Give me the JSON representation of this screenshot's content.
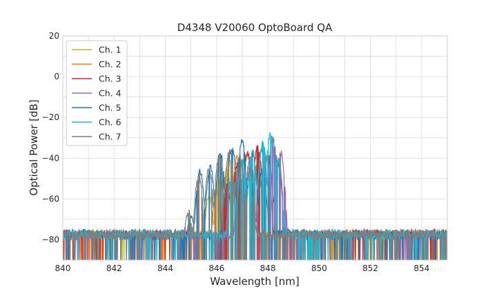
{
  "chart_data": {
    "type": "line",
    "title": "D4348 V20060 OptoBoard QA",
    "xlabel": "Wavelength [nm]",
    "ylabel": "Optical Power [dB]",
    "xlim": [
      840,
      855
    ],
    "ylim": [
      -90,
      20
    ],
    "xticks": [
      840,
      842,
      844,
      846,
      848,
      850,
      852,
      854
    ],
    "yticks": [
      -80,
      -60,
      -40,
      -20,
      0,
      20
    ],
    "ytick_labels": [
      "−80",
      "−60",
      "−40",
      "−20",
      "0",
      "20"
    ],
    "grid": true,
    "legend_position": "top-left",
    "noise_floor_db": -76,
    "series": [
      {
        "name": "Ch. 1",
        "color": "#bcbd22",
        "peaks": [
          {
            "x": 845.7,
            "y": -57
          },
          {
            "x": 846.1,
            "y": -46
          },
          {
            "x": 846.5,
            "y": -40
          },
          {
            "x": 846.9,
            "y": -38
          },
          {
            "x": 847.3,
            "y": -42
          },
          {
            "x": 847.7,
            "y": -50
          }
        ]
      },
      {
        "name": "Ch. 2",
        "color": "#ff7f0e",
        "peaks": [
          {
            "x": 846.0,
            "y": -55
          },
          {
            "x": 846.4,
            "y": -44
          },
          {
            "x": 846.8,
            "y": -38
          },
          {
            "x": 847.2,
            "y": -37
          },
          {
            "x": 847.6,
            "y": -41
          },
          {
            "x": 848.0,
            "y": -49
          }
        ]
      },
      {
        "name": "Ch. 3",
        "color": "#d62728",
        "peaks": [
          {
            "x": 846.4,
            "y": -51
          },
          {
            "x": 846.8,
            "y": -42
          },
          {
            "x": 847.2,
            "y": -36
          },
          {
            "x": 847.6,
            "y": -33
          },
          {
            "x": 848.0,
            "y": -36
          },
          {
            "x": 848.4,
            "y": -41
          }
        ]
      },
      {
        "name": "Ch. 4",
        "color": "#9467bd",
        "peaks": [
          {
            "x": 846.9,
            "y": -47
          },
          {
            "x": 847.3,
            "y": -39
          },
          {
            "x": 847.8,
            "y": -33
          },
          {
            "x": 848.2,
            "y": -29
          },
          {
            "x": 848.5,
            "y": -36
          }
        ]
      },
      {
        "name": "Ch. 5",
        "color": "#1f77b4",
        "peaks": [
          {
            "x": 845.0,
            "y": -67
          },
          {
            "x": 845.35,
            "y": -45
          },
          {
            "x": 845.75,
            "y": -43
          },
          {
            "x": 846.15,
            "y": -37
          },
          {
            "x": 846.6,
            "y": -33
          },
          {
            "x": 847.0,
            "y": -30
          },
          {
            "x": 847.4,
            "y": -36
          },
          {
            "x": 847.8,
            "y": -44
          }
        ]
      },
      {
        "name": "Ch. 6",
        "color": "#17becf",
        "peaks": [
          {
            "x": 846.6,
            "y": -47
          },
          {
            "x": 847.0,
            "y": -40
          },
          {
            "x": 847.4,
            "y": -35
          },
          {
            "x": 847.8,
            "y": -31
          },
          {
            "x": 848.1,
            "y": -27
          },
          {
            "x": 848.4,
            "y": -38
          }
        ]
      },
      {
        "name": "Ch. 7",
        "color": "#7f7f7f",
        "peaks": [
          {
            "x": 844.9,
            "y": -65
          },
          {
            "x": 845.3,
            "y": -47
          },
          {
            "x": 845.7,
            "y": -44
          },
          {
            "x": 846.1,
            "y": -38
          },
          {
            "x": 846.5,
            "y": -35
          },
          {
            "x": 846.9,
            "y": -37
          },
          {
            "x": 847.3,
            "y": -44
          }
        ]
      }
    ]
  }
}
